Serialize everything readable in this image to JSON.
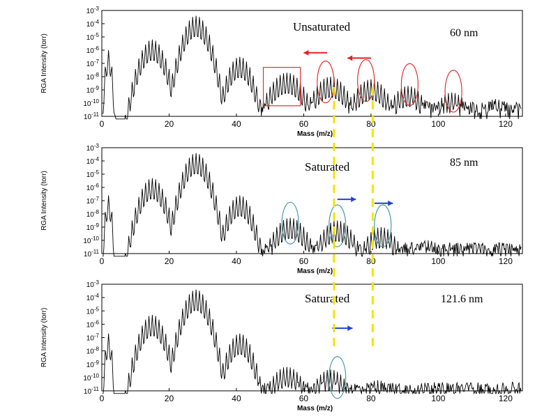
{
  "chart_data": [
    {
      "type": "line",
      "thickness_label": "60 nm",
      "state_label": "Unsaturated",
      "xlabel": "Mass (m/z)",
      "ylabel": "RGA Intensity (torr)",
      "xlim": [
        0,
        125
      ],
      "ylim_log10": [
        -11,
        -3
      ],
      "x_ticks": [
        "0",
        "20",
        "40",
        "60",
        "80",
        "100",
        "120"
      ],
      "y_ticks": [
        "10-3",
        "10-4",
        "10-5",
        "10-6",
        "10-7",
        "10-8",
        "10-9",
        "10-10",
        "10-11"
      ],
      "peak_groups": [
        {
          "center": 2,
          "log_peak": -6.0
        },
        {
          "center": 15,
          "log_peak": -5.2
        },
        {
          "center": 28,
          "log_peak": -3.4
        },
        {
          "center": 41,
          "log_peak": -6.5
        },
        {
          "center": 55,
          "log_peak": -7.7
        },
        {
          "center": 68,
          "log_peak": -8.0
        },
        {
          "center": 80,
          "log_peak": -8.2
        },
        {
          "center": 91,
          "log_peak": -8.7
        },
        {
          "center": 104,
          "log_peak": -9.2
        },
        {
          "center": 117,
          "log_peak": -9.7
        }
      ],
      "noise_floor_log": -10.3,
      "highlights": [
        {
          "shape": "rect",
          "x_range": [
            48,
            59
          ],
          "log_range": [
            -7.3,
            -10.2
          ],
          "color": "#e03030"
        },
        {
          "shape": "ellipse",
          "x": 66.5,
          "log_y": -8.4,
          "color": "#e03030"
        },
        {
          "shape": "ellipse",
          "x": 78.5,
          "log_y": -8.3,
          "color": "#e03030"
        },
        {
          "shape": "ellipse",
          "x": 91.5,
          "log_y": -8.6,
          "color": "#e03030"
        },
        {
          "shape": "ellipse",
          "x": 104.5,
          "log_y": -9.1,
          "color": "#e03030"
        }
      ],
      "arrows": [
        {
          "x_from": 67,
          "x_to": 60,
          "log_y": -6.2,
          "color": "#e02020"
        },
        {
          "x_from": 80,
          "x_to": 73,
          "log_y": -6.6,
          "color": "#e02020"
        }
      ]
    },
    {
      "type": "line",
      "thickness_label": "85 nm",
      "state_label": "Saturated",
      "xlabel": "Mass (m/z)",
      "ylabel": "RGA Intensity (torr)",
      "xlim": [
        0,
        125
      ],
      "ylim_log10": [
        -11,
        -3
      ],
      "x_ticks": [
        "0",
        "20",
        "40",
        "60",
        "80",
        "100",
        "120"
      ],
      "y_ticks": [
        "10-3",
        "10-4",
        "10-5",
        "10-6",
        "10-7",
        "10-8",
        "10-9",
        "10-10",
        "10-11"
      ],
      "peak_groups": [
        {
          "center": 2,
          "log_peak": -6.6
        },
        {
          "center": 15,
          "log_peak": -5.3
        },
        {
          "center": 28,
          "log_peak": -3.4
        },
        {
          "center": 41,
          "log_peak": -6.6
        },
        {
          "center": 56,
          "log_peak": -8.3
        },
        {
          "center": 70,
          "log_peak": -8.5
        },
        {
          "center": 83,
          "log_peak": -9.0
        },
        {
          "center": 97,
          "log_peak": -10.0
        },
        {
          "center": 111,
          "log_peak": -10.2
        }
      ],
      "noise_floor_log": -10.6,
      "highlights": [
        {
          "shape": "ellipse",
          "x": 56,
          "log_y": -8.7,
          "color": "#4a9aa8"
        },
        {
          "shape": "ellipse",
          "x": 70,
          "log_y": -8.9,
          "color": "#4a9aa8"
        },
        {
          "shape": "ellipse",
          "x": 83.5,
          "log_y": -8.9,
          "color": "#4a9aa8"
        }
      ],
      "arrows": [
        {
          "x_from": 70,
          "x_to": 75.5,
          "log_y": -6.9,
          "color": "#2040e0"
        },
        {
          "x_from": 81,
          "x_to": 86.5,
          "log_y": -7.2,
          "color": "#2040e0"
        }
      ]
    },
    {
      "type": "line",
      "thickness_label": "121.6 nm",
      "state_label": "Saturated",
      "xlabel": "Mass (m/z)",
      "ylabel": "RGA Intensity (torr)",
      "xlim": [
        0,
        125
      ],
      "ylim_log10": [
        -11,
        -3
      ],
      "x_ticks": [
        "0",
        "20",
        "40",
        "60",
        "80",
        "100",
        "120"
      ],
      "y_ticks": [
        "10-3",
        "10-4",
        "10-5",
        "10-6",
        "10-7",
        "10-8",
        "10-9",
        "10-10",
        "10-11"
      ],
      "peak_groups": [
        {
          "center": 2,
          "log_peak": -6.7
        },
        {
          "center": 15,
          "log_peak": -5.3
        },
        {
          "center": 28,
          "log_peak": -3.4
        },
        {
          "center": 41,
          "log_peak": -6.7
        },
        {
          "center": 55,
          "log_peak": -9.2
        },
        {
          "center": 68,
          "log_peak": -9.4
        },
        {
          "center": 82,
          "log_peak": -10.2
        },
        {
          "center": 96,
          "log_peak": -10.4
        }
      ],
      "noise_floor_log": -10.8,
      "highlights": [
        {
          "shape": "ellipse",
          "x": 70,
          "log_y": -10.0,
          "color": "#4a9aa8"
        }
      ],
      "arrows": [
        {
          "x_from": 68.5,
          "x_to": 74.5,
          "log_y": -6.3,
          "color": "#2040e0"
        }
      ]
    }
  ],
  "reference_lines": [
    {
      "mass": 69,
      "color": "#f2e600",
      "style": "dashed"
    },
    {
      "mass": 80.5,
      "color": "#f2e600",
      "style": "dashed"
    }
  ]
}
